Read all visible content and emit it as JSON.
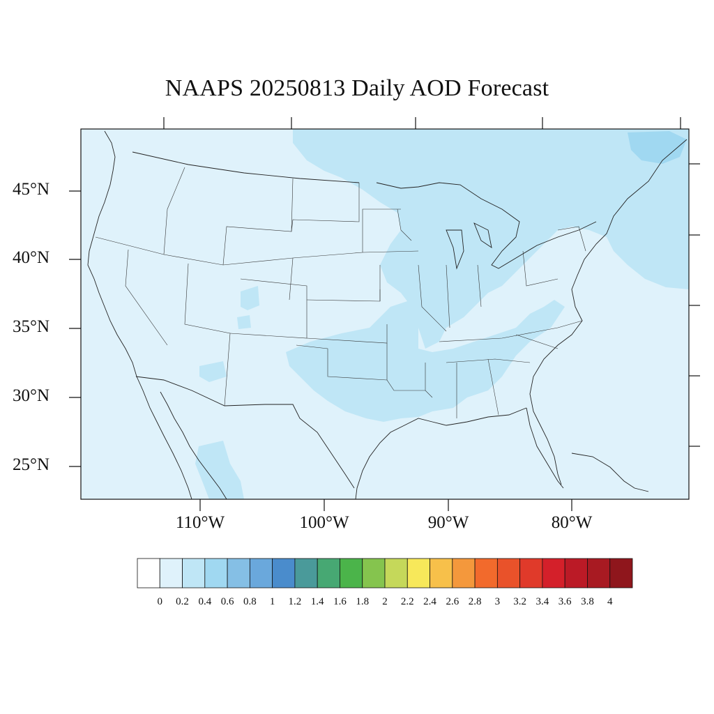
{
  "map": {
    "title": "NAAPS 20250813 Daily AOD Forecast",
    "lat_labels": [
      "45°N",
      "40°N",
      "35°N",
      "30°N",
      "25°N"
    ],
    "lon_labels": [
      "110°W",
      "100°W",
      "90°W",
      "80°W"
    ],
    "background_color": "#dff2fb",
    "layers": {
      "low_aod_color": "#dff2fb",
      "moderate_aod_color": "#bfe6f6",
      "higher_aod_color": "#a0d8f1"
    }
  },
  "colorbar": {
    "tick_labels": [
      "0",
      "0.2",
      "0.4",
      "0.6",
      "0.8",
      "1",
      "1.2",
      "1.4",
      "1.6",
      "1.8",
      "2",
      "2.2",
      "2.4",
      "2.6",
      "2.8",
      "3",
      "3.2",
      "3.4",
      "3.6",
      "3.8",
      "4"
    ],
    "colors": [
      "#ffffff",
      "#dff2fb",
      "#bfe6f6",
      "#a0d8f1",
      "#85bfe5",
      "#6aa8dc",
      "#4a8ccc",
      "#4a9a9a",
      "#47a873",
      "#4bb44a",
      "#85c44e",
      "#c5d85a",
      "#f7e85a",
      "#f7c04a",
      "#f4983c",
      "#f26a2c",
      "#e9522a",
      "#e03a2a",
      "#d4202a",
      "#bb1a26",
      "#a81a22",
      "#8f161c"
    ]
  }
}
